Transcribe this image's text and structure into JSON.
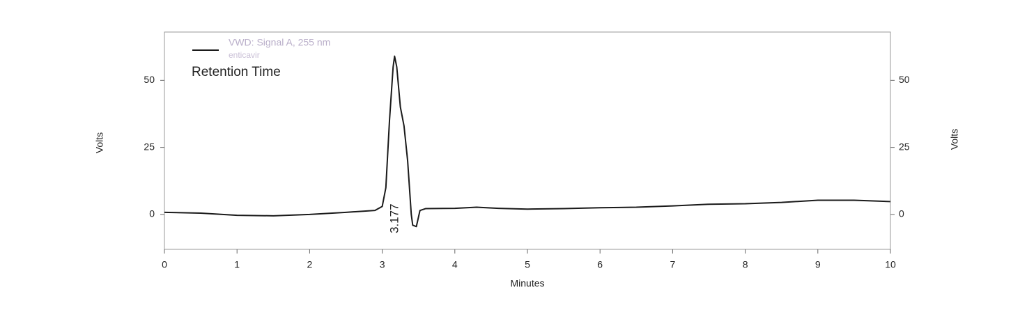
{
  "chart_data": {
    "type": "line",
    "legend": {
      "series_label": "VWD: Signal A, 255 nm",
      "sample": "enticavir",
      "subtitle": "Retention Time"
    },
    "x_label": "Minutes",
    "y_label": "Volts",
    "y2_label": "Volts",
    "xlim": [
      0,
      10
    ],
    "xticks": [
      0,
      1,
      2,
      3,
      4,
      5,
      6,
      7,
      8,
      9,
      10
    ],
    "ylim": [
      -13,
      68
    ],
    "yticks": [
      0,
      25,
      50
    ],
    "y2lim": [
      -13,
      68
    ],
    "y2ticks": [
      0,
      25,
      50
    ],
    "series": [
      {
        "name": "VWD: Signal A, 255 nm",
        "color": "#1a1a1a",
        "x": [
          0,
          0.5,
          1,
          1.5,
          2,
          2.5,
          2.9,
          3.0,
          3.05,
          3.1,
          3.15,
          3.17,
          3.2,
          3.25,
          3.3,
          3.35,
          3.4,
          3.42,
          3.47,
          3.52,
          3.6,
          4,
          4.3,
          4.6,
          5,
          5.5,
          6,
          6.5,
          7,
          7.5,
          8,
          8.5,
          9,
          9.5,
          10
        ],
        "values": [
          0.8,
          0.5,
          -0.3,
          -0.5,
          0,
          0.8,
          1.5,
          3,
          10,
          35,
          55,
          59,
          55,
          40,
          33,
          20,
          0,
          -4,
          -4.5,
          1.5,
          2.2,
          2.3,
          2.7,
          2.3,
          2,
          2.2,
          2.5,
          2.7,
          3.2,
          3.8,
          4,
          4.5,
          5.3,
          5.3,
          4.8
        ]
      }
    ],
    "annotations": [
      {
        "text": "3.177",
        "x": 3.177
      }
    ]
  }
}
